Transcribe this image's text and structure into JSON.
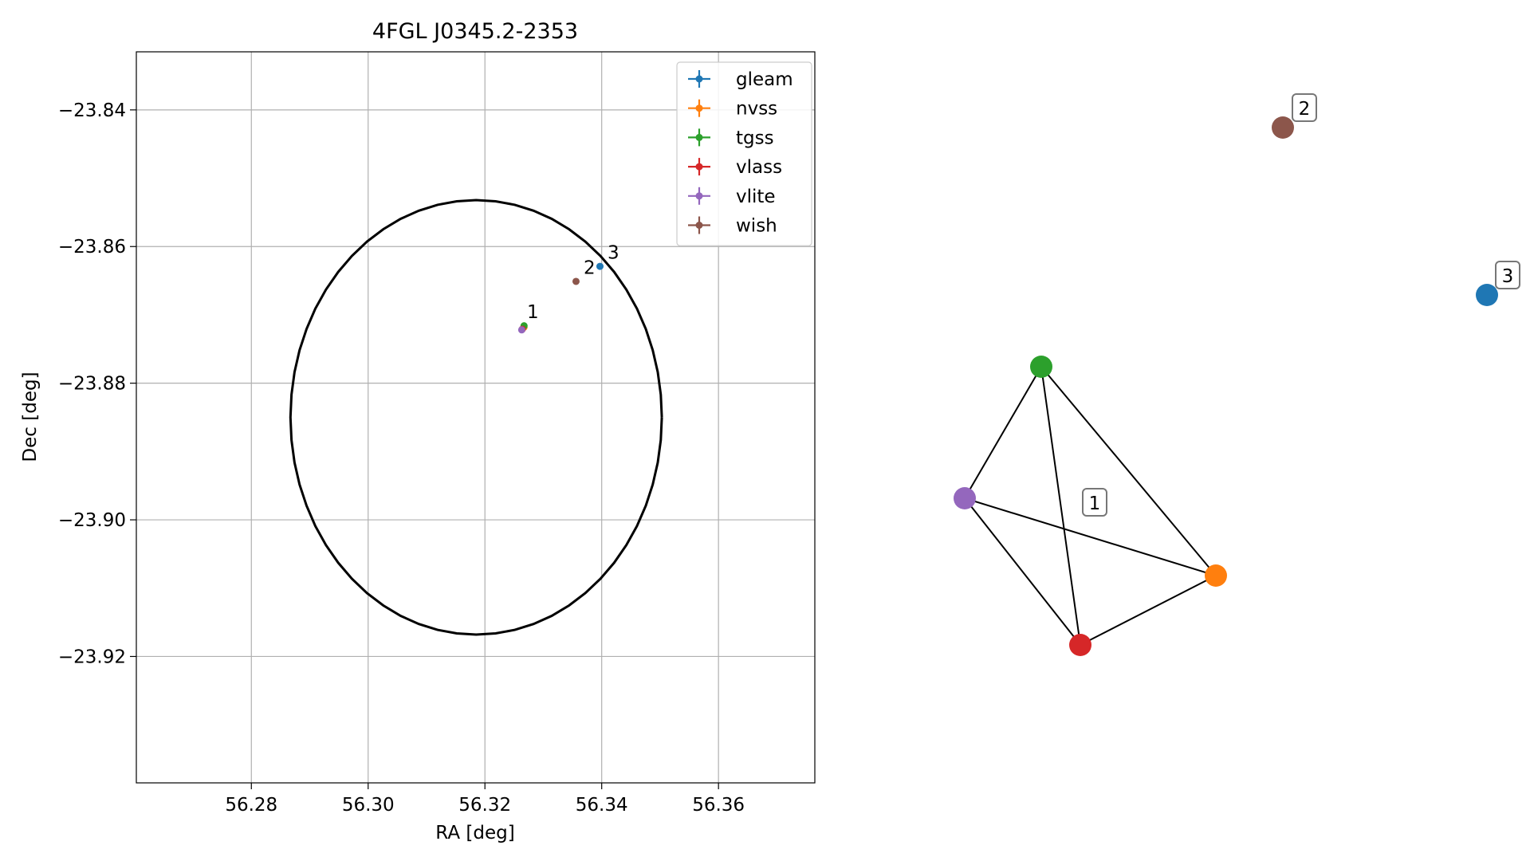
{
  "chart_data": [
    {
      "type": "scatter",
      "title": "4FGL J0345.2-2353",
      "xlabel": "RA [deg]",
      "ylabel": "Dec [deg]",
      "xlim": [
        56.2603,
        56.3765
      ],
      "ylim": [
        -23.9385,
        -23.8315
      ],
      "xticks": [
        56.28,
        56.3,
        56.32,
        56.34,
        56.36
      ],
      "xtick_labels": [
        "56.28",
        "56.30",
        "56.32",
        "56.34",
        "56.36"
      ],
      "yticks": [
        -23.84,
        -23.86,
        -23.88,
        -23.9,
        -23.92
      ],
      "ytick_labels": [
        "−23.84",
        "−23.86",
        "−23.88",
        "−23.90",
        "−23.92"
      ],
      "grid": true,
      "legend_position": "top-right",
      "series": [
        {
          "name": "gleam",
          "color": "#1f77b4",
          "x": [
            56.3397
          ],
          "y": [
            -23.8629
          ]
        },
        {
          "name": "nvss",
          "color": "#ff7f0e",
          "x": [
            56.3267
          ],
          "y": [
            -23.8718
          ]
        },
        {
          "name": "tgss",
          "color": "#2ca02c",
          "x": [
            56.3267
          ],
          "y": [
            -23.8716
          ]
        },
        {
          "name": "vlass",
          "color": "#d62728",
          "x": [
            56.3264
          ],
          "y": [
            -23.8721
          ]
        },
        {
          "name": "vlite",
          "color": "#9467bd",
          "x": [
            56.3263
          ],
          "y": [
            -23.8722
          ]
        },
        {
          "name": "wish",
          "color": "#8c564b",
          "x": [
            56.3356
          ],
          "y": [
            -23.8651
          ]
        }
      ],
      "circle": {
        "center": [
          56.3185,
          -23.885
        ],
        "radius_deg": 0.0318,
        "color": "#000000"
      },
      "annotations": [
        {
          "text": "1",
          "x": 56.3272,
          "y": -23.8705
        },
        {
          "text": "2",
          "x": 56.3369,
          "y": -23.864
        },
        {
          "text": "3",
          "x": 56.341,
          "y": -23.8618
        }
      ]
    },
    {
      "type": "graph",
      "nodes": [
        {
          "id": "gleam",
          "color": "#1f77b4",
          "group": "3"
        },
        {
          "id": "wish",
          "color": "#8c564b",
          "group": "2"
        },
        {
          "id": "tgss",
          "color": "#2ca02c",
          "group": "1"
        },
        {
          "id": "vlite",
          "color": "#9467bd",
          "group": "1"
        },
        {
          "id": "nvss",
          "color": "#ff7f0e",
          "group": "1"
        },
        {
          "id": "vlass",
          "color": "#d62728",
          "group": "1"
        }
      ],
      "edges": [
        [
          "tgss",
          "vlite"
        ],
        [
          "tgss",
          "vlass"
        ],
        [
          "tgss",
          "nvss"
        ],
        [
          "vlite",
          "nvss"
        ],
        [
          "vlite",
          "vlass"
        ],
        [
          "vlass",
          "nvss"
        ]
      ],
      "group_labels": [
        "1",
        "2",
        "3"
      ]
    }
  ]
}
